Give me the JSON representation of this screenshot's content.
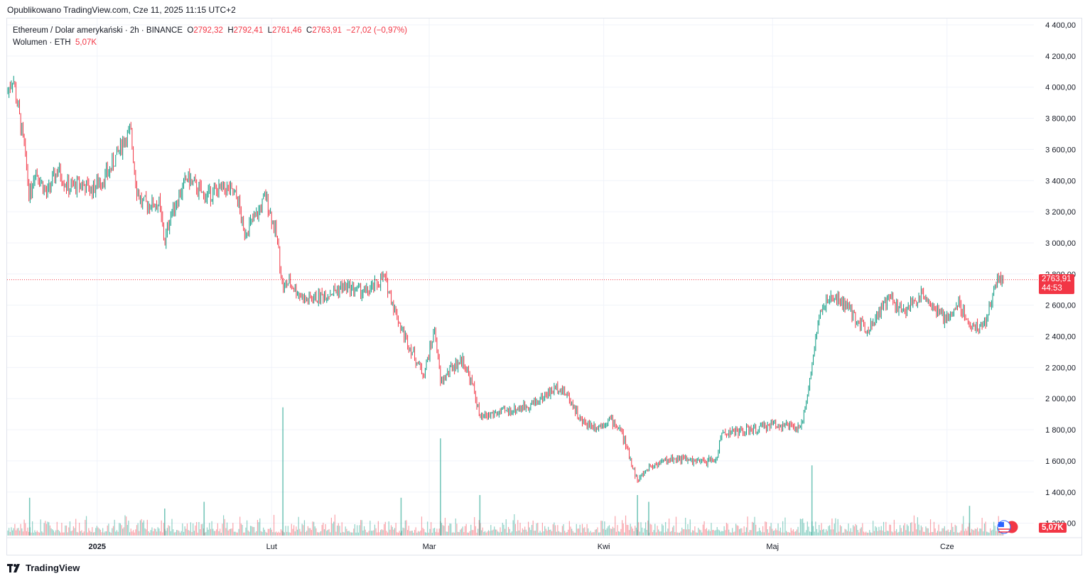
{
  "published": "Opublikowano TradingView.com, Cze 11, 2025 11:15 UTC+2",
  "legend": {
    "symbol": "Ethereum / Dolar amerykański · 2h · BINANCE",
    "o_label": "O",
    "o_value": "2792,32",
    "h_label": "H",
    "h_value": "2792,41",
    "l_label": "L",
    "l_value": "2761,46",
    "c_label": "C",
    "c_value": "2763,91",
    "change": "−27,02 (−0,97%)",
    "volume_label": "Wolumen · ETH",
    "volume_value": "5,07K"
  },
  "price_tag": {
    "price": "2763,91",
    "countdown": "44:53"
  },
  "volume_tag": "5,07K",
  "footer": {
    "brand": "TradingView"
  },
  "colors": {
    "up": "#089981",
    "down": "#f23645",
    "grid": "#f0f3fa",
    "axis_text": "#131722"
  },
  "chart_data": {
    "type": "candlestick",
    "title": "",
    "ylim": [
      1170,
      4450
    ],
    "y_ticks": [
      "4 400,00",
      "4 200,00",
      "4 000,00",
      "3 800,00",
      "3 600,00",
      "3 400,00",
      "3 200,00",
      "3 000,00",
      "2 800,00",
      "2 600,00",
      "2 400,00",
      "2 200,00",
      "2 000,00",
      "1 800,00",
      "1 600,00",
      "1 400,00",
      "1 200,00"
    ],
    "y_tick_values": [
      4400,
      4200,
      4000,
      3800,
      3600,
      3400,
      3200,
      3000,
      2800,
      2600,
      2400,
      2200,
      2000,
      1800,
      1600,
      1400,
      1200
    ],
    "x_ticks": [
      "2025",
      "Lut",
      "Mar",
      "Kwi",
      "Maj",
      "Cze"
    ],
    "x_tick_dates": [
      "2025-01-01",
      "2025-02-01",
      "2025-03-01",
      "2025-04-01",
      "2025-05-01",
      "2025-06-01"
    ],
    "x_range": [
      "2024-12-16",
      "2025-06-11"
    ],
    "last_price": 2763.91,
    "price_path": [
      [
        "2024-12-16",
        3960
      ],
      [
        "2024-12-17",
        4070
      ],
      [
        "2024-12-18",
        3850
      ],
      [
        "2024-12-19",
        3620
      ],
      [
        "2024-12-20",
        3300
      ],
      [
        "2024-12-21",
        3480
      ],
      [
        "2024-12-23",
        3310
      ],
      [
        "2024-12-25",
        3470
      ],
      [
        "2024-12-27",
        3350
      ],
      [
        "2024-12-29",
        3380
      ],
      [
        "2024-12-31",
        3340
      ],
      [
        "2025-01-03",
        3450
      ],
      [
        "2025-01-06",
        3680
      ],
      [
        "2025-01-07",
        3700
      ],
      [
        "2025-01-08",
        3350
      ],
      [
        "2025-01-09",
        3250
      ],
      [
        "2025-01-12",
        3250
      ],
      [
        "2025-01-13",
        3000
      ],
      [
        "2025-01-14",
        3180
      ],
      [
        "2025-01-17",
        3420
      ],
      [
        "2025-01-20",
        3300
      ],
      [
        "2025-01-22",
        3330
      ],
      [
        "2025-01-24",
        3350
      ],
      [
        "2025-01-26",
        3280
      ],
      [
        "2025-01-27",
        3070
      ],
      [
        "2025-01-29",
        3150
      ],
      [
        "2025-01-31",
        3300
      ],
      [
        "2025-02-02",
        3020
      ],
      [
        "2025-02-03",
        2700
      ],
      [
        "2025-02-04",
        2750
      ],
      [
        "2025-02-07",
        2630
      ],
      [
        "2025-02-10",
        2660
      ],
      [
        "2025-02-14",
        2720
      ],
      [
        "2025-02-18",
        2680
      ],
      [
        "2025-02-21",
        2780
      ],
      [
        "2025-02-24",
        2450
      ],
      [
        "2025-02-26",
        2300
      ],
      [
        "2025-02-28",
        2150
      ],
      [
        "2025-03-02",
        2450
      ],
      [
        "2025-03-03",
        2100
      ],
      [
        "2025-03-05",
        2200
      ],
      [
        "2025-03-07",
        2250
      ],
      [
        "2025-03-09",
        2050
      ],
      [
        "2025-03-10",
        1870
      ],
      [
        "2025-03-12",
        1900
      ],
      [
        "2025-03-15",
        1920
      ],
      [
        "2025-03-18",
        1950
      ],
      [
        "2025-03-20",
        1980
      ],
      [
        "2025-03-24",
        2080
      ],
      [
        "2025-03-26",
        2000
      ],
      [
        "2025-03-28",
        1850
      ],
      [
        "2025-03-31",
        1820
      ],
      [
        "2025-04-02",
        1870
      ],
      [
        "2025-04-04",
        1800
      ],
      [
        "2025-04-06",
        1580
      ],
      [
        "2025-04-07",
        1470
      ],
      [
        "2025-04-09",
        1560
      ],
      [
        "2025-04-11",
        1590
      ],
      [
        "2025-04-14",
        1620
      ],
      [
        "2025-04-18",
        1590
      ],
      [
        "2025-04-21",
        1610
      ],
      [
        "2025-04-22",
        1780
      ],
      [
        "2025-04-25",
        1790
      ],
      [
        "2025-04-28",
        1800
      ],
      [
        "2025-05-01",
        1840
      ],
      [
        "2025-05-04",
        1820
      ],
      [
        "2025-05-06",
        1800
      ],
      [
        "2025-05-08",
        2200
      ],
      [
        "2025-05-09",
        2480
      ],
      [
        "2025-05-10",
        2600
      ],
      [
        "2025-05-12",
        2650
      ],
      [
        "2025-05-14",
        2600
      ],
      [
        "2025-05-16",
        2500
      ],
      [
        "2025-05-18",
        2450
      ],
      [
        "2025-05-20",
        2560
      ],
      [
        "2025-05-22",
        2650
      ],
      [
        "2025-05-24",
        2550
      ],
      [
        "2025-05-26",
        2620
      ],
      [
        "2025-05-28",
        2680
      ],
      [
        "2025-05-30",
        2560
      ],
      [
        "2025-06-01",
        2500
      ],
      [
        "2025-06-03",
        2620
      ],
      [
        "2025-06-05",
        2480
      ],
      [
        "2025-06-06",
        2450
      ],
      [
        "2025-06-08",
        2500
      ],
      [
        "2025-06-09",
        2650
      ],
      [
        "2025-06-10",
        2780
      ],
      [
        "2025-06-11",
        2763.91
      ]
    ],
    "volume_spikes": [
      [
        "2025-02-03",
        0.95
      ],
      [
        "2025-03-03",
        0.72
      ],
      [
        "2025-04-07",
        0.3
      ],
      [
        "2025-05-08",
        0.52
      ],
      [
        "2024-12-20",
        0.28
      ],
      [
        "2025-01-13",
        0.2
      ],
      [
        "2025-01-20",
        0.25
      ],
      [
        "2025-02-24",
        0.28
      ],
      [
        "2025-03-10",
        0.3
      ],
      [
        "2025-04-09",
        0.25
      ],
      [
        "2025-06-05",
        0.22
      ]
    ]
  }
}
